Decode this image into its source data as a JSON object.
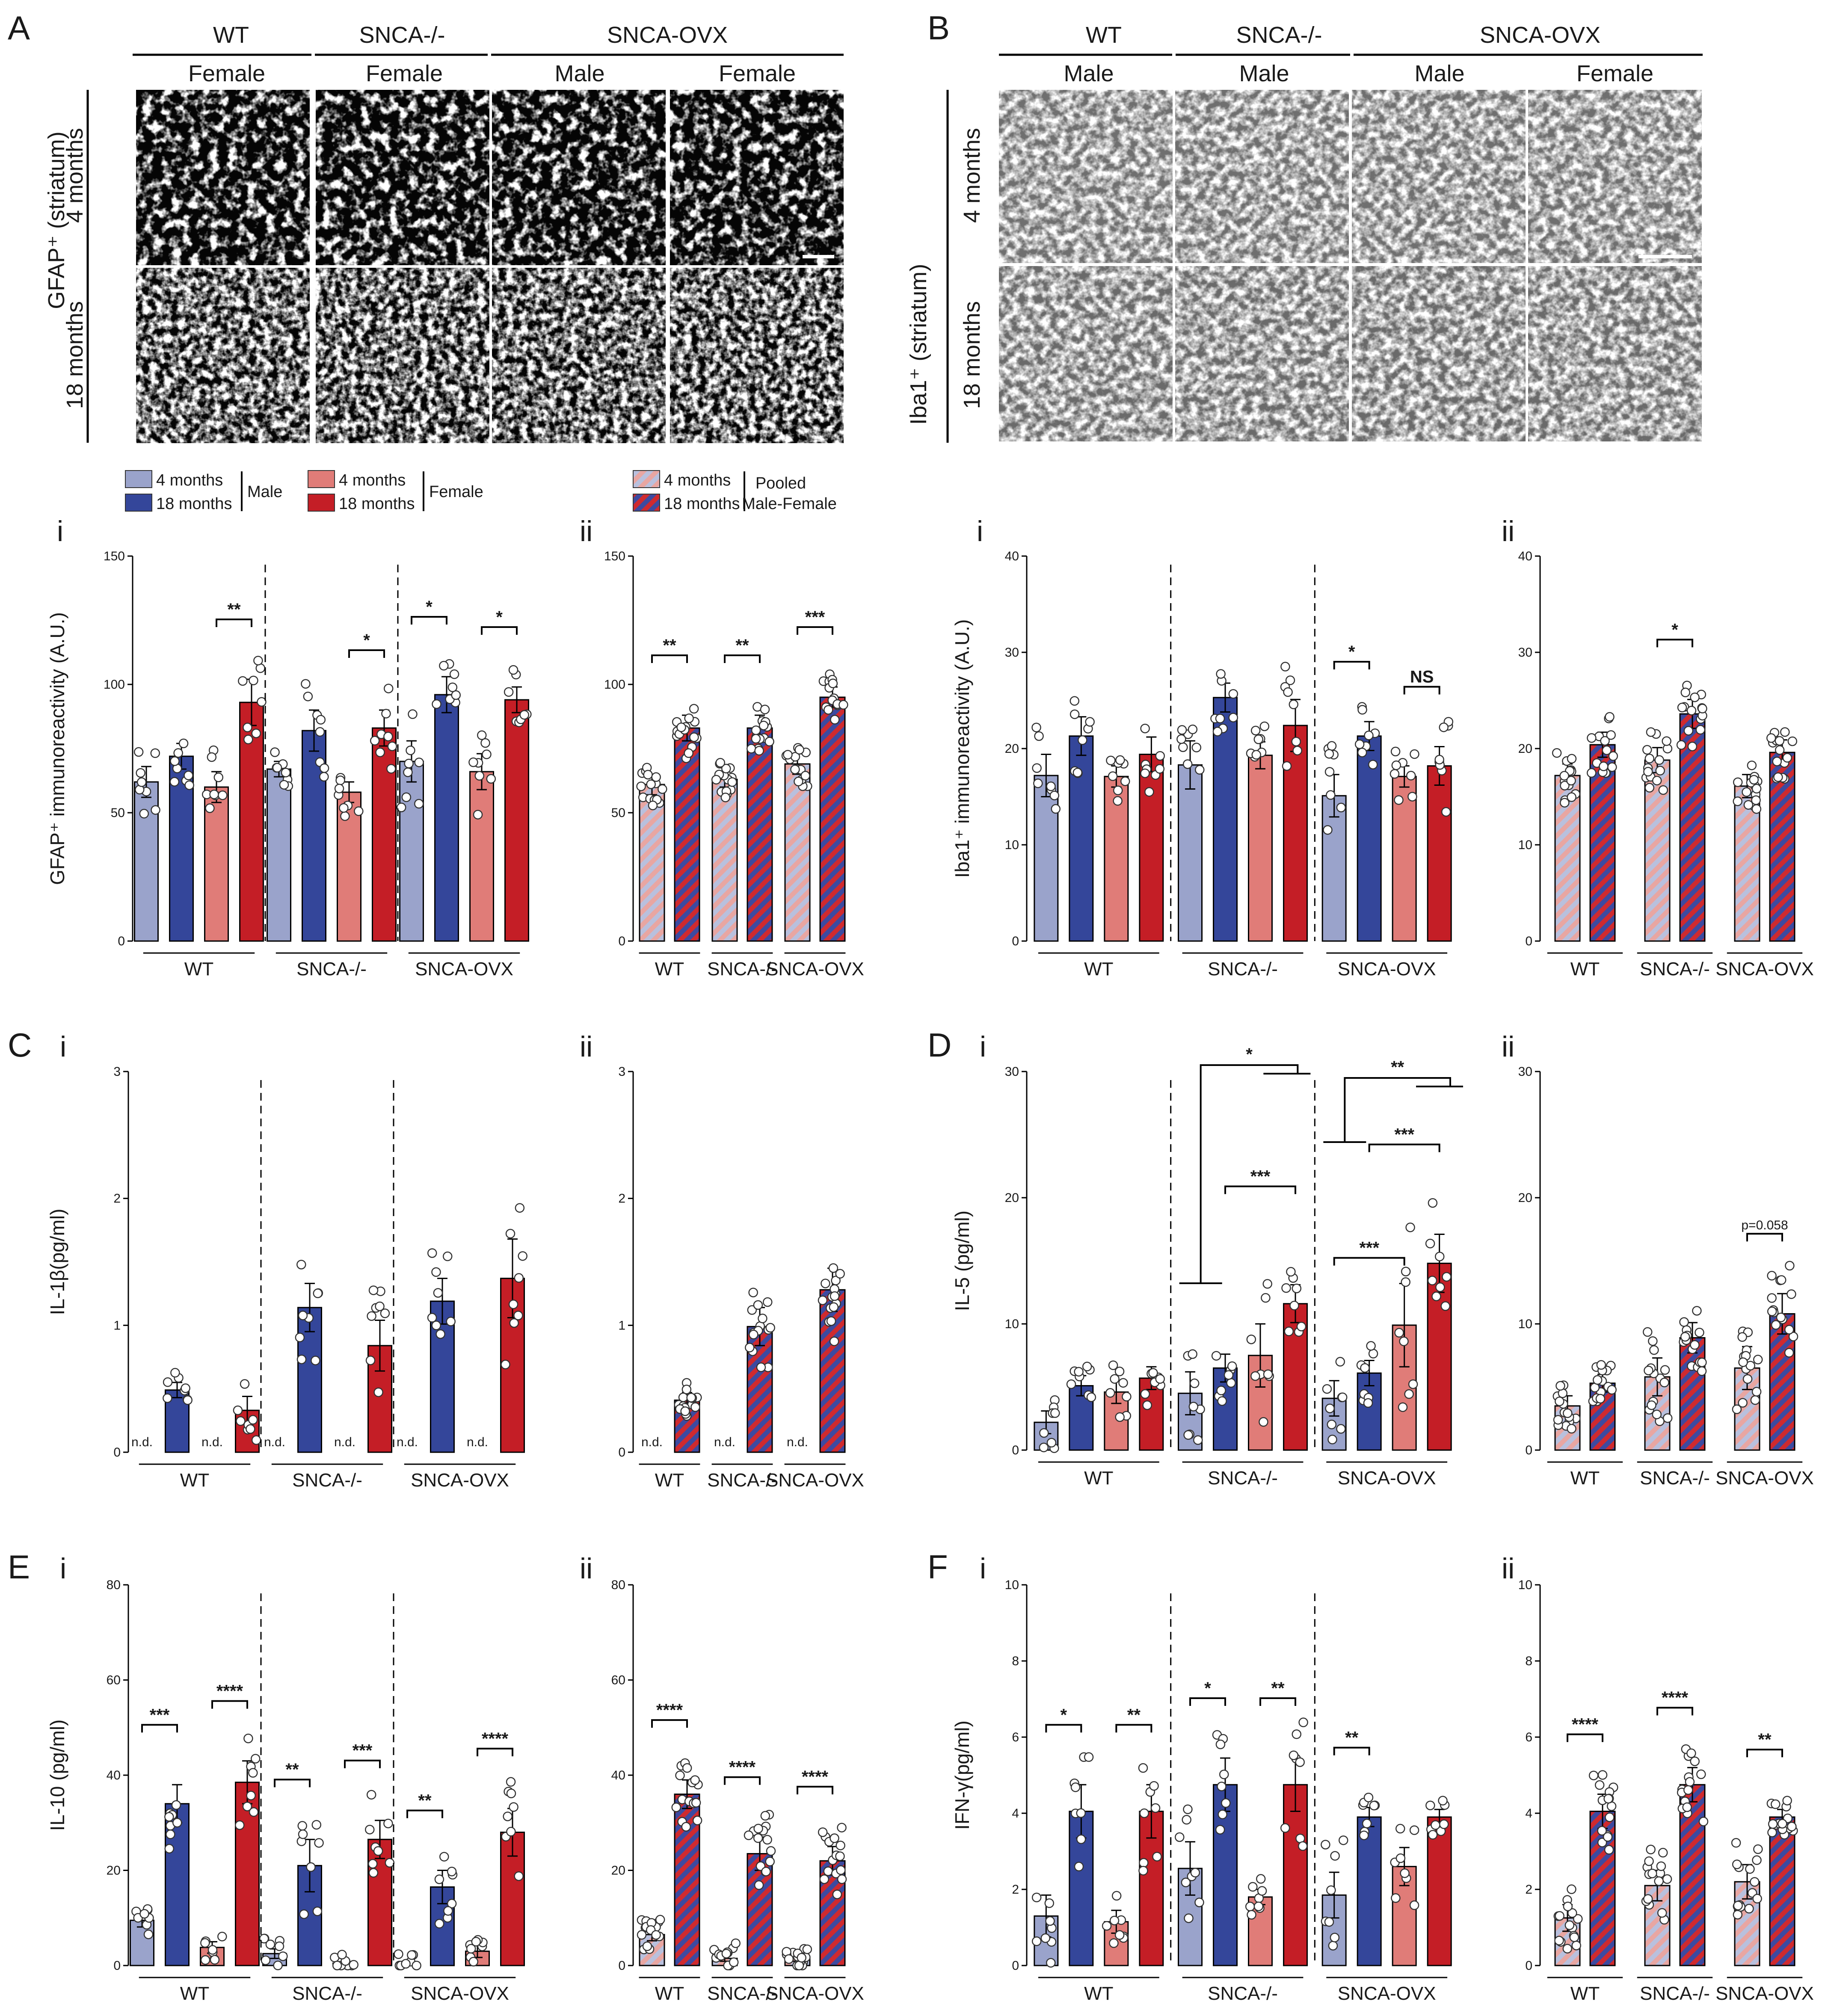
{
  "colors": {
    "male_4": "#9aa3cb",
    "male_18": "#34469a",
    "female_4": "#e07c78",
    "female_18": "#c41e26",
    "pooled_stripe_a": "#e8a6a2",
    "pooled_stripe_b": "#b9c0dd",
    "pooled18_stripe_a": "#cf2a2f",
    "pooled18_stripe_b": "#3d4aa0"
  },
  "panel_letters": {
    "A": "A",
    "B": "B",
    "C": "C",
    "D": "D",
    "E": "E",
    "F": "F"
  },
  "sub_labels": {
    "i": "i",
    "ii": "ii"
  },
  "micro_A": {
    "genotypes": [
      "WT",
      "SNCA-/-",
      "SNCA-OVX"
    ],
    "sexes": [
      "Female",
      "Female",
      "Male",
      "Female"
    ],
    "rows": [
      "4 months",
      "18 months"
    ],
    "ylabel": "GFAP⁺ (striatum)"
  },
  "micro_B": {
    "genotypes": [
      "WT",
      "SNCA-/-",
      "SNCA-OVX"
    ],
    "sexes": [
      "Male",
      "Male",
      "Male",
      "Female"
    ],
    "rows": [
      "4 months",
      "18 months"
    ],
    "ylabel": "Iba1⁺ (striatum)"
  },
  "legend": {
    "m4": "4 months",
    "m18": "18 months",
    "male": "Male",
    "f4": "4 months",
    "f18": "18 months",
    "female": "Female",
    "p4": "4 months",
    "p18": "18 months",
    "pooled1": "Pooled",
    "pooled2": "Male-Female"
  },
  "chart_data": [
    {
      "id": "Ai",
      "type": "bar",
      "ylabel": "GFAP⁺ immunoreactivity (A.U.)",
      "ylim": [
        0,
        150
      ],
      "yticks": [
        0,
        50,
        100,
        150
      ],
      "groups": [
        "WT",
        "SNCA-/-",
        "SNCA-OVX"
      ],
      "series_order": [
        "male 4 months",
        "male 18 months",
        "female 4 months",
        "female 18 months"
      ],
      "values": [
        [
          62,
          72,
          60,
          93
        ],
        [
          67,
          82,
          58,
          83
        ],
        [
          70,
          96,
          66,
          94
        ]
      ],
      "errors": [
        [
          6,
          5,
          6,
          9
        ],
        [
          3,
          8,
          4,
          7
        ],
        [
          8,
          7,
          7,
          5
        ]
      ],
      "significance": [
        {
          "group": 0,
          "from": 2,
          "to": 3,
          "label": "**"
        },
        {
          "group": 1,
          "from": 2,
          "to": 3,
          "label": "*"
        },
        {
          "group": 2,
          "from": 0,
          "to": 1,
          "label": "*"
        },
        {
          "group": 2,
          "from": 2,
          "to": 3,
          "label": "*"
        }
      ]
    },
    {
      "id": "Aii",
      "type": "bar",
      "ylim": [
        0,
        150
      ],
      "yticks": [
        0,
        50,
        100,
        150
      ],
      "groups": [
        "WT",
        "SNCA-/-",
        "SNCA-OVX"
      ],
      "series_order": [
        "pooled 4 months",
        "pooled 18 months"
      ],
      "values": [
        [
          61,
          83
        ],
        [
          63,
          83
        ],
        [
          69,
          95
        ]
      ],
      "errors": [
        [
          4,
          5
        ],
        [
          3,
          5
        ],
        [
          4,
          4
        ]
      ],
      "significance": [
        {
          "group": 0,
          "from": 0,
          "to": 1,
          "label": "**"
        },
        {
          "group": 1,
          "from": 0,
          "to": 1,
          "label": "**"
        },
        {
          "group": 2,
          "from": 0,
          "to": 1,
          "label": "***"
        }
      ]
    },
    {
      "id": "Bi",
      "type": "bar",
      "ylabel": "Iba1⁺ immunoreactivity (A.U.)",
      "ylim": [
        0,
        40
      ],
      "yticks": [
        0,
        10,
        20,
        30,
        40
      ],
      "groups": [
        "WT",
        "SNCA-/-",
        "SNCA-OVX"
      ],
      "series_order": [
        "male 4 months",
        "male 18 months",
        "female 4 months",
        "female 18 months"
      ],
      "values": [
        [
          17.2,
          21.3,
          17.1,
          19.4
        ],
        [
          18.3,
          25.3,
          19.3,
          22.4
        ],
        [
          15.1,
          21.3,
          17.1,
          18.2
        ]
      ],
      "errors": [
        [
          2.2,
          2.0,
          1.1,
          1.8
        ],
        [
          2.5,
          1.5,
          1.4,
          2.7
        ],
        [
          2.2,
          1.5,
          1.1,
          2.0
        ]
      ],
      "significance": [
        {
          "group": 2,
          "from": 0,
          "to": 1,
          "label": "*"
        },
        {
          "group": 2,
          "from": 2,
          "to": 3,
          "label": "NS"
        }
      ]
    },
    {
      "id": "Bii",
      "type": "bar",
      "ylim": [
        0,
        40
      ],
      "yticks": [
        0,
        10,
        20,
        30,
        40
      ],
      "groups": [
        "WT",
        "SNCA-/-",
        "SNCA-OVX"
      ],
      "series_order": [
        "pooled 4 months",
        "pooled 18 months"
      ],
      "values": [
        [
          17.2,
          20.4
        ],
        [
          18.8,
          23.6
        ],
        [
          16.1,
          19.6
        ]
      ],
      "errors": [
        [
          1.2,
          1.3
        ],
        [
          1.3,
          1.5
        ],
        [
          1.2,
          1.3
        ]
      ],
      "significance": [
        {
          "group": 1,
          "from": 0,
          "to": 1,
          "label": "*"
        }
      ]
    },
    {
      "id": "Ci",
      "type": "bar",
      "ylabel": "IL-1β(pg/ml)",
      "ylim": [
        0,
        3
      ],
      "yticks": [
        0,
        1,
        2,
        3
      ],
      "groups": [
        "WT",
        "SNCA-/-",
        "SNCA-OVX"
      ],
      "series_order": [
        "male 4 months",
        "male 18 months",
        "female 4 months",
        "female 18 months"
      ],
      "values": [
        [
          null,
          0.49,
          null,
          0.33
        ],
        [
          null,
          1.14,
          null,
          0.84
        ],
        [
          null,
          1.19,
          null,
          1.37
        ]
      ],
      "errors": [
        [
          0,
          0.06,
          0,
          0.11
        ],
        [
          0,
          0.19,
          0,
          0.2
        ],
        [
          0,
          0.18,
          0,
          0.31
        ]
      ],
      "nd_label": "n.d.",
      "significance": []
    },
    {
      "id": "Cii",
      "type": "bar",
      "ylim": [
        0,
        3
      ],
      "yticks": [
        0,
        1,
        2,
        3
      ],
      "groups": [
        "WT",
        "SNCA-/-",
        "SNCA-OVX"
      ],
      "series_order": [
        "pooled 4 months",
        "pooled 18 months"
      ],
      "values": [
        [
          null,
          0.41
        ],
        [
          null,
          0.99
        ],
        [
          null,
          1.28
        ]
      ],
      "errors": [
        [
          0,
          0.06
        ],
        [
          0,
          0.15
        ],
        [
          0,
          0.17
        ]
      ],
      "nd_label": "n.d.",
      "significance": []
    },
    {
      "id": "Di",
      "type": "bar",
      "ylabel": "IL-5 (pg/ml)",
      "ylim": [
        0,
        30
      ],
      "yticks": [
        0,
        10,
        20,
        30
      ],
      "groups": [
        "WT",
        "SNCA-/-",
        "SNCA-OVX"
      ],
      "series_order": [
        "male 4 months",
        "male 18 months",
        "female 4 months",
        "female 18 months"
      ],
      "values": [
        [
          2.2,
          5.1,
          4.6,
          5.7
        ],
        [
          4.5,
          6.5,
          7.5,
          11.6
        ],
        [
          4.1,
          6.1,
          9.9,
          14.8
        ]
      ],
      "errors": [
        [
          0.9,
          0.8,
          0.9,
          0.9
        ],
        [
          1.7,
          1.1,
          2.5,
          1.5
        ],
        [
          1.4,
          1.0,
          3.3,
          2.3
        ]
      ],
      "significance": [
        {
          "group": 1,
          "from": 1,
          "to": 3,
          "label": "***"
        },
        {
          "group": 2,
          "from": 1,
          "to": 3,
          "label": "***"
        },
        {
          "group": 2,
          "from": 0,
          "to": 2,
          "label": "***"
        }
      ],
      "brackets": [
        {
          "label": "*"
        },
        {
          "label": "**"
        }
      ]
    },
    {
      "id": "Dii",
      "type": "bar",
      "ylim": [
        0,
        30
      ],
      "yticks": [
        0,
        10,
        20,
        30
      ],
      "groups": [
        "WT",
        "SNCA-/-",
        "SNCA-OVX"
      ],
      "series_order": [
        "pooled 4 months",
        "pooled 18 months"
      ],
      "values": [
        [
          3.5,
          5.3
        ],
        [
          5.8,
          8.9
        ],
        [
          6.5,
          10.8
        ]
      ],
      "errors": [
        [
          0.8,
          0.7
        ],
        [
          1.5,
          1.2
        ],
        [
          1.7,
          1.6
        ]
      ],
      "significance": [
        {
          "group": 2,
          "from": 0,
          "to": 1,
          "label": "p=0.058"
        }
      ]
    },
    {
      "id": "Ei",
      "type": "bar",
      "ylabel": "IL-10 (pg/ml)",
      "ylim": [
        0,
        80
      ],
      "yticks": [
        0,
        20,
        40,
        60,
        80
      ],
      "groups": [
        "WT",
        "SNCA-/-",
        "SNCA-OVX"
      ],
      "series_order": [
        "male 4 months",
        "male 18 months",
        "female 4 months",
        "female 18 months"
      ],
      "values": [
        [
          9.5,
          34,
          3.8,
          38.5
        ],
        [
          2.5,
          21,
          0.5,
          26.5
        ],
        [
          0.2,
          16.5,
          3,
          28
        ]
      ],
      "errors": [
        [
          1.4,
          4,
          1.2,
          4.5
        ],
        [
          1.0,
          5.5,
          0.3,
          4
        ],
        [
          0.1,
          3.5,
          1.3,
          5
        ]
      ],
      "significance": [
        {
          "group": 0,
          "from": 0,
          "to": 1,
          "label": "***"
        },
        {
          "group": 0,
          "from": 2,
          "to": 3,
          "label": "****"
        },
        {
          "group": 1,
          "from": 0,
          "to": 1,
          "label": "**"
        },
        {
          "group": 1,
          "from": 2,
          "to": 3,
          "label": "***"
        },
        {
          "group": 2,
          "from": 0,
          "to": 1,
          "label": "**"
        },
        {
          "group": 2,
          "from": 2,
          "to": 3,
          "label": "****"
        }
      ]
    },
    {
      "id": "Eii",
      "type": "bar",
      "ylim": [
        0,
        80
      ],
      "yticks": [
        0,
        20,
        40,
        60,
        80
      ],
      "groups": [
        "WT",
        "SNCA-/-",
        "SNCA-OVX"
      ],
      "series_order": [
        "pooled 4 months",
        "pooled 18 months"
      ],
      "values": [
        [
          6.5,
          36
        ],
        [
          1.5,
          23.5
        ],
        [
          1.6,
          22
        ]
      ],
      "errors": [
        [
          1.3,
          3
        ],
        [
          0.6,
          3.5
        ],
        [
          0.7,
          3
        ]
      ],
      "significance": [
        {
          "group": 0,
          "from": 0,
          "to": 1,
          "label": "****"
        },
        {
          "group": 1,
          "from": 0,
          "to": 1,
          "label": "****"
        },
        {
          "group": 2,
          "from": 0,
          "to": 1,
          "label": "****"
        }
      ]
    },
    {
      "id": "Fi",
      "type": "bar",
      "ylabel": "IFN-γ(pg/ml)",
      "ylim": [
        0,
        10
      ],
      "yticks": [
        0,
        2,
        4,
        6,
        8,
        10
      ],
      "groups": [
        "WT",
        "SNCA-/-",
        "SNCA-OVX"
      ],
      "series_order": [
        "male 4 months",
        "male 18 months",
        "female 4 months",
        "female 18 months"
      ],
      "values": [
        [
          1.3,
          4.05,
          1.15,
          4.05
        ],
        [
          2.55,
          4.75,
          1.8,
          4.75
        ],
        [
          1.85,
          3.9,
          2.6,
          3.9
        ]
      ],
      "errors": [
        [
          0.55,
          0.7,
          0.3,
          0.7
        ],
        [
          0.7,
          0.7,
          0.2,
          0.7
        ],
        [
          0.6,
          0.25,
          0.5,
          0.2
        ]
      ],
      "significance": [
        {
          "group": 0,
          "from": 0,
          "to": 1,
          "label": "*"
        },
        {
          "group": 0,
          "from": 2,
          "to": 3,
          "label": "**"
        },
        {
          "group": 1,
          "from": 0,
          "to": 1,
          "label": "*"
        },
        {
          "group": 1,
          "from": 2,
          "to": 3,
          "label": "**"
        },
        {
          "group": 2,
          "from": 0,
          "to": 1,
          "label": "**"
        }
      ]
    },
    {
      "id": "Fii",
      "type": "bar",
      "ylim": [
        0,
        10
      ],
      "yticks": [
        0,
        2,
        4,
        6,
        8,
        10
      ],
      "groups": [
        "WT",
        "SNCA-/-",
        "SNCA-OVX"
      ],
      "series_order": [
        "pooled 4 months",
        "pooled 18 months"
      ],
      "values": [
        [
          1.25,
          4.05
        ],
        [
          2.1,
          4.75
        ],
        [
          2.2,
          3.9
        ]
      ],
      "errors": [
        [
          0.35,
          0.45
        ],
        [
          0.4,
          0.45
        ],
        [
          0.45,
          0.2
        ]
      ],
      "significance": [
        {
          "group": 0,
          "from": 0,
          "to": 1,
          "label": "****"
        },
        {
          "group": 1,
          "from": 0,
          "to": 1,
          "label": "****"
        },
        {
          "group": 2,
          "from": 0,
          "to": 1,
          "label": "**"
        }
      ]
    }
  ]
}
